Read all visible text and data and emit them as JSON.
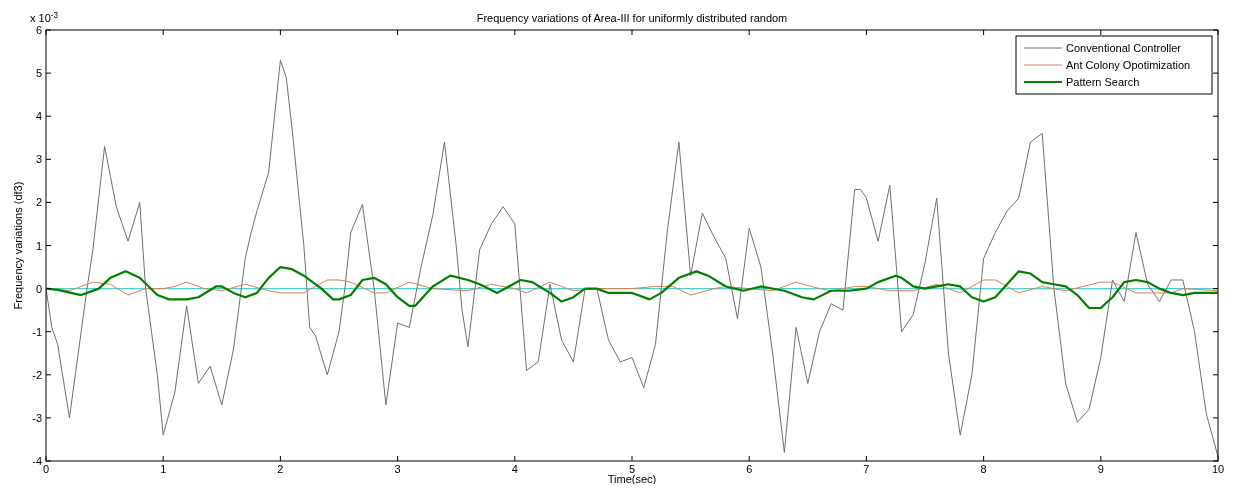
{
  "chart_data": {
    "type": "line",
    "title": "Frequency variations of Area-III for uniformly distributed random",
    "xlabel": "Time(sec)",
    "ylabel": "Frequency variations (df3)",
    "annotations": [
      "x 10$^{-3}$"
    ],
    "xlim": [
      0,
      10
    ],
    "xticks": [
      0,
      1,
      2,
      3,
      4,
      5,
      6,
      7,
      8,
      9,
      10
    ],
    "ylim": [
      -4,
      6
    ],
    "yticks": [
      -4,
      -3,
      -2,
      -1,
      0,
      1,
      2,
      3,
      4,
      5,
      6
    ],
    "grid": false,
    "legend": "top right",
    "line_style": "solid",
    "marker": "none",
    "ref_lines": [
      {
        "axis": "y",
        "value": 0,
        "color": "#4fcfcf"
      }
    ],
    "series": [
      {
        "name": "Conventional Controller",
        "color": "#707070",
        "x": [
          0,
          0.05,
          0.1,
          0.2,
          0.25,
          0.35,
          0.4,
          0.5,
          0.55,
          0.6,
          0.7,
          0.8,
          0.85,
          0.95,
          1.0,
          1.1,
          1.2,
          1.3,
          1.4,
          1.5,
          1.6,
          1.7,
          1.75,
          1.8,
          1.9,
          1.95,
          2.0,
          2.05,
          2.1,
          2.2,
          2.25,
          2.3,
          2.4,
          2.5,
          2.55,
          2.6,
          2.7,
          2.8,
          2.9,
          3.0,
          3.1,
          3.2,
          3.3,
          3.4,
          3.5,
          3.55,
          3.6,
          3.7,
          3.8,
          3.9,
          4.0,
          4.1,
          4.2,
          4.3,
          4.4,
          4.5,
          4.6,
          4.7,
          4.8,
          4.9,
          5.0,
          5.1,
          5.2,
          5.3,
          5.4,
          5.5,
          5.6,
          5.7,
          5.8,
          5.9,
          6.0,
          6.1,
          6.2,
          6.3,
          6.4,
          6.5,
          6.6,
          6.7,
          6.8,
          6.9,
          6.95,
          7.0,
          7.1,
          7.2,
          7.3,
          7.4,
          7.5,
          7.6,
          7.7,
          7.8,
          7.9,
          8.0,
          8.1,
          8.2,
          8.3,
          8.4,
          8.5,
          8.6,
          8.7,
          8.8,
          8.9,
          9.0,
          9.1,
          9.2,
          9.3,
          9.4,
          9.5,
          9.6,
          9.7,
          9.8,
          9.9,
          10.0
        ],
        "values": [
          0,
          -0.9,
          -1.3,
          -3.0,
          -2.0,
          0,
          0.9,
          3.3,
          2.6,
          1.9,
          1.1,
          2.0,
          0,
          -2.0,
          -3.4,
          -2.4,
          -0.4,
          -2.2,
          -1.8,
          -2.7,
          -1.4,
          0.7,
          1.3,
          1.8,
          2.7,
          4.0,
          5.3,
          4.9,
          3.7,
          1.0,
          -0.9,
          -1.1,
          -2.0,
          -1.0,
          0,
          1.3,
          1.95,
          0,
          -2.7,
          -0.8,
          -0.9,
          0.5,
          1.7,
          3.4,
          1.0,
          -0.5,
          -1.35,
          0.9,
          1.5,
          1.9,
          1.5,
          -1.9,
          -1.7,
          0.1,
          -1.2,
          -1.7,
          0,
          0,
          -1.2,
          -1.7,
          -1.6,
          -2.3,
          -1.3,
          1.3,
          3.4,
          0.3,
          1.75,
          1.2,
          0.7,
          -0.7,
          1.4,
          0.5,
          -1.5,
          -3.8,
          -0.9,
          -2.2,
          -1.0,
          -0.35,
          -0.5,
          2.3,
          2.3,
          2.1,
          1.1,
          2.4,
          -1.0,
          -0.6,
          0.6,
          2.1,
          -1.5,
          -3.4,
          -2.0,
          0.7,
          1.3,
          1.8,
          2.1,
          3.4,
          3.6,
          0,
          -2.2,
          -3.1,
          -2.8,
          -1.6,
          0.2,
          -0.3,
          1.3,
          0.1,
          -0.3,
          0.2,
          0.2,
          -1.0,
          -2.9,
          -3.9
        ]
      },
      {
        "name": "Ant Colony Opotimization",
        "color": "#d4825a",
        "x": [
          0,
          0.2,
          0.4,
          0.55,
          0.7,
          0.85,
          1.0,
          1.1,
          1.2,
          1.35,
          1.5,
          1.7,
          1.9,
          2.0,
          2.2,
          2.4,
          2.5,
          2.6,
          2.8,
          2.9,
          3.1,
          3.3,
          3.6,
          3.8,
          4.0,
          4.1,
          4.3,
          4.5,
          4.7,
          5.0,
          5.2,
          5.35,
          5.5,
          5.7,
          5.8,
          6.0,
          6.2,
          6.4,
          6.6,
          6.7,
          6.9,
          7.0,
          7.2,
          7.4,
          7.6,
          7.8,
          8.0,
          8.1,
          8.3,
          8.5,
          8.7,
          9.0,
          9.1,
          9.3,
          9.6,
          9.7,
          10
        ],
        "values": [
          0,
          -0.05,
          0.15,
          0.1,
          -0.15,
          0,
          0,
          0.05,
          0.15,
          0,
          -0.05,
          0.1,
          -0.05,
          -0.1,
          -0.1,
          0.2,
          0.2,
          0.15,
          -0.1,
          -0.1,
          0.15,
          0,
          -0.05,
          0.1,
          0,
          -0.1,
          0.15,
          -0.05,
          0,
          0,
          0.05,
          0.05,
          -0.15,
          0,
          0.05,
          0,
          -0.05,
          0.15,
          0,
          -0.05,
          0.05,
          0.05,
          -0.05,
          -0.05,
          0.1,
          -0.1,
          0.2,
          0.2,
          -0.1,
          0.05,
          -0.05,
          0.15,
          0.15,
          -0.1,
          -0.1,
          0,
          -0.05
        ]
      },
      {
        "name": "Pattern Search",
        "color": "#008000",
        "x": [
          0,
          0.1,
          0.3,
          0.45,
          0.55,
          0.68,
          0.8,
          0.95,
          1.05,
          1.2,
          1.3,
          1.45,
          1.5,
          1.6,
          1.7,
          1.8,
          1.9,
          2.0,
          2.1,
          2.2,
          2.35,
          2.45,
          2.5,
          2.6,
          2.7,
          2.8,
          2.9,
          3.0,
          3.1,
          3.15,
          3.3,
          3.45,
          3.6,
          3.7,
          3.85,
          3.95,
          4.05,
          4.15,
          4.3,
          4.4,
          4.5,
          4.6,
          4.7,
          4.8,
          4.9,
          5.0,
          5.15,
          5.25,
          5.4,
          5.55,
          5.65,
          5.8,
          5.95,
          6.1,
          6.3,
          6.45,
          6.55,
          6.7,
          6.85,
          7.0,
          7.1,
          7.25,
          7.3,
          7.4,
          7.5,
          7.6,
          7.7,
          7.8,
          7.9,
          8.0,
          8.1,
          8.2,
          8.3,
          8.4,
          8.5,
          8.6,
          8.7,
          8.8,
          8.9,
          9.0,
          9.1,
          9.2,
          9.3,
          9.4,
          9.5,
          9.6,
          9.7,
          9.8,
          10
        ],
        "values": [
          0,
          -0.03,
          -0.15,
          0,
          0.25,
          0.4,
          0.25,
          -0.15,
          -0.25,
          -0.25,
          -0.2,
          0.05,
          0.05,
          -0.1,
          -0.2,
          -0.1,
          0.25,
          0.5,
          0.45,
          0.3,
          0,
          -0.25,
          -0.25,
          -0.15,
          0.2,
          0.25,
          0.1,
          -0.2,
          -0.4,
          -0.4,
          0.05,
          0.3,
          0.2,
          0.1,
          -0.1,
          0.05,
          0.2,
          0.15,
          -0.1,
          -0.3,
          -0.2,
          0,
          0,
          -0.1,
          -0.1,
          -0.1,
          -0.25,
          -0.1,
          0.25,
          0.4,
          0.3,
          0.05,
          -0.05,
          0.05,
          -0.05,
          -0.2,
          -0.25,
          -0.05,
          -0.05,
          0,
          0.15,
          0.3,
          0.25,
          0.05,
          0,
          0.05,
          0.1,
          0.05,
          -0.2,
          -0.3,
          -0.2,
          0.1,
          0.4,
          0.35,
          0.15,
          0.1,
          0.05,
          -0.15,
          -0.45,
          -0.45,
          -0.2,
          0.15,
          0.2,
          0.15,
          0,
          -0.1,
          -0.15,
          -0.1,
          -0.1
        ]
      }
    ]
  }
}
